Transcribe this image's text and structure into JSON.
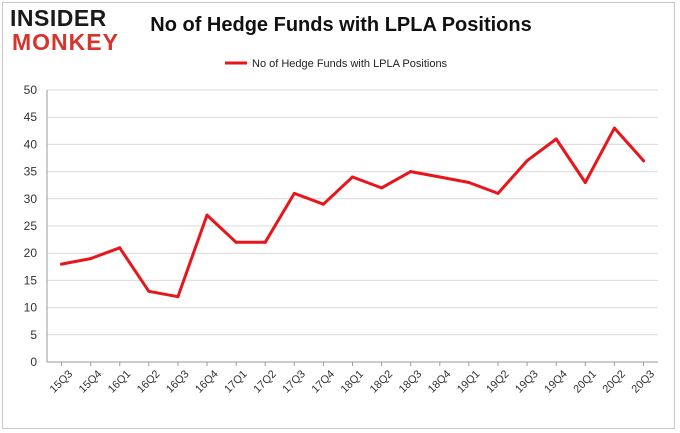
{
  "logo": {
    "line1": "INSIDER",
    "line2": "MONKEY"
  },
  "colors": {
    "series": "#e8151b",
    "grid": "#d9d9d9",
    "axis": "#9a9a9a",
    "logo_accent": "#d9342b"
  },
  "chart_data": {
    "type": "line",
    "title": "No of Hedge Funds with LPLA Positions",
    "xlabel": "",
    "ylabel": "",
    "ylim": [
      0,
      50
    ],
    "yticks": [
      0,
      5,
      10,
      15,
      20,
      25,
      30,
      35,
      40,
      45,
      50
    ],
    "grid": true,
    "legend_position": "top-center",
    "categories": [
      "15Q3",
      "15Q4",
      "16Q1",
      "16Q2",
      "16Q3",
      "16Q4",
      "17Q1",
      "17Q2",
      "17Q3",
      "17Q4",
      "18Q1",
      "18Q2",
      "18Q3",
      "18Q4",
      "19Q1",
      "19Q2",
      "19Q3",
      "19Q4",
      "20Q1",
      "20Q2",
      "20Q3"
    ],
    "series": [
      {
        "name": "No of Hedge Funds with LPLA Positions",
        "color": "#e8151b",
        "values": [
          18,
          19,
          21,
          13,
          12,
          27,
          22,
          22,
          31,
          29,
          34,
          32,
          35,
          34,
          33,
          31,
          37,
          41,
          33,
          43,
          37
        ]
      }
    ]
  }
}
